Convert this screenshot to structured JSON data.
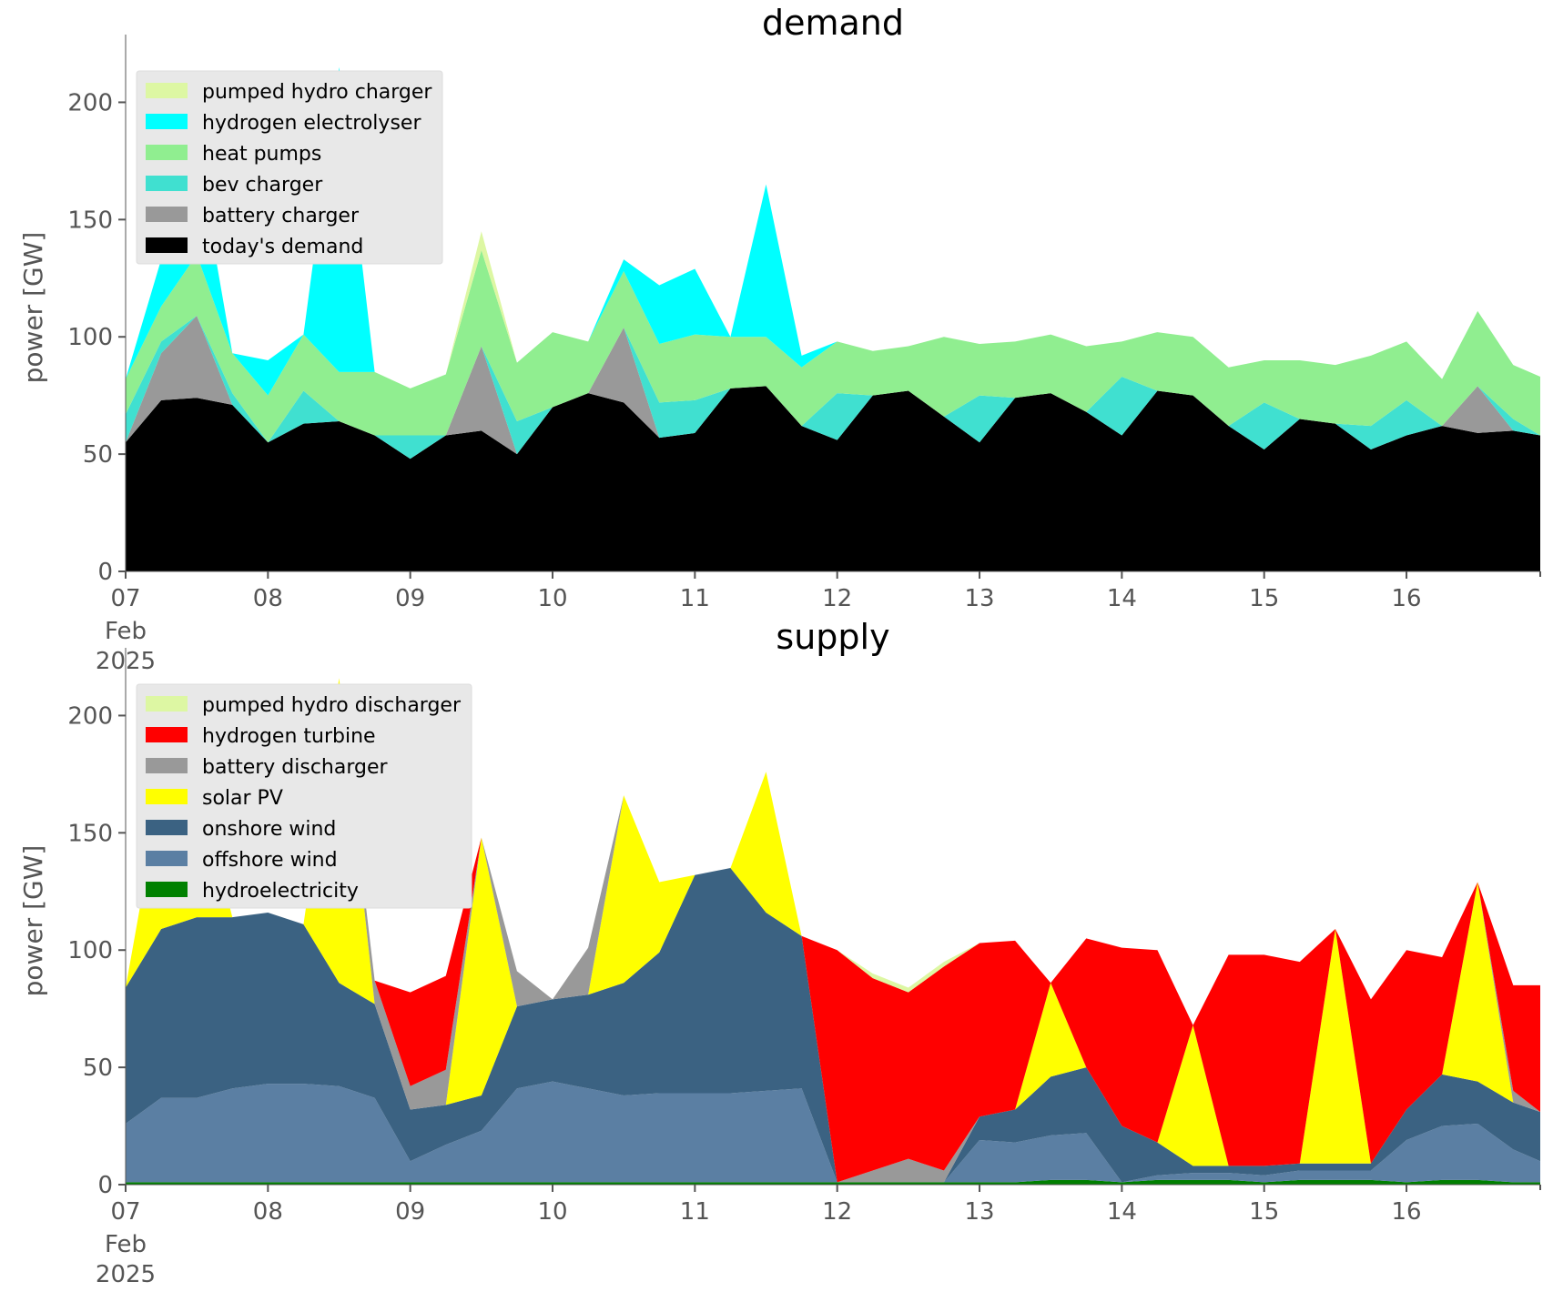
{
  "chart_data": [
    {
      "type": "area",
      "title": "demand",
      "ylabel": "power [GW]",
      "ylim": [
        0,
        225
      ],
      "yticks": [
        "0",
        "50",
        "100",
        "150",
        "200"
      ],
      "xlim": [
        0,
        9.94
      ],
      "xticks": [
        {
          "pos": 0,
          "label": "07",
          "sublabels": [
            "Feb",
            "2025"
          ]
        },
        {
          "pos": 1,
          "label": "08"
        },
        {
          "pos": 2,
          "label": "09"
        },
        {
          "pos": 3,
          "label": "10"
        },
        {
          "pos": 4,
          "label": "11"
        },
        {
          "pos": 5,
          "label": "12"
        },
        {
          "pos": 6,
          "label": "13"
        },
        {
          "pos": 7,
          "label": "14"
        },
        {
          "pos": 8,
          "label": "15"
        },
        {
          "pos": 9,
          "label": "16"
        }
      ],
      "x_unit": "days from 07 Feb 2025",
      "x": [
        0,
        0.25,
        0.5,
        0.75,
        1,
        1.25,
        1.5,
        1.75,
        2,
        2.25,
        2.5,
        2.75,
        3,
        3.25,
        3.5,
        3.75,
        4,
        4.25,
        4.5,
        4.75,
        5,
        5.25,
        5.5,
        5.75,
        6,
        6.25,
        6.5,
        6.75,
        7,
        7.25,
        7.5,
        7.75,
        8,
        8.25,
        8.5,
        8.75,
        9,
        9.25,
        9.5,
        9.75,
        9.94
      ],
      "legend_position": "top-left",
      "grid": false,
      "series": [
        {
          "name": "today's demand",
          "color": "#000000",
          "values": [
            55,
            73,
            74,
            71,
            55,
            63,
            64,
            58,
            48,
            58,
            60,
            50,
            70,
            76,
            72,
            57,
            59,
            78,
            79,
            62,
            56,
            75,
            77,
            66,
            55,
            74,
            76,
            68,
            58,
            77,
            75,
            62,
            52,
            65,
            63,
            52,
            58,
            62,
            59,
            60,
            58
          ]
        },
        {
          "name": "battery charger",
          "color": "#999999",
          "values": [
            0,
            20,
            35,
            0,
            0,
            0,
            0,
            0,
            0,
            0,
            36,
            0,
            0,
            0,
            32,
            0,
            0,
            0,
            0,
            0,
            0,
            0,
            0,
            0,
            0,
            0,
            0,
            0,
            0,
            0,
            0,
            0,
            0,
            0,
            0,
            0,
            0,
            0,
            20,
            0,
            0
          ]
        },
        {
          "name": "bev charger",
          "color": "#40E0D0",
          "values": [
            12,
            5,
            0,
            5,
            0,
            14,
            0,
            0,
            10,
            0,
            0,
            14,
            0,
            0,
            0,
            15,
            14,
            0,
            0,
            0,
            20,
            0,
            0,
            0,
            20,
            0,
            0,
            0,
            25,
            0,
            0,
            0,
            20,
            0,
            0,
            10,
            15,
            0,
            0,
            5,
            0
          ]
        },
        {
          "name": "heat pumps",
          "color": "#90EE90",
          "values": [
            15,
            15,
            26,
            17,
            20,
            24,
            21,
            27,
            20,
            26,
            41,
            25,
            32,
            22,
            24,
            25,
            28,
            22,
            21,
            25,
            22,
            19,
            19,
            34,
            22,
            24,
            25,
            28,
            15,
            25,
            25,
            25,
            18,
            25,
            25,
            30,
            25,
            20,
            32,
            23,
            25
          ]
        },
        {
          "name": "hydrogen electrolyser",
          "color": "#00FFFF",
          "values": [
            0,
            20,
            45,
            0,
            15,
            0,
            130,
            0,
            0,
            0,
            0,
            0,
            0,
            0,
            5,
            25,
            28,
            0,
            65,
            5,
            0,
            0,
            0,
            0,
            0,
            0,
            0,
            0,
            0,
            0,
            0,
            0,
            0,
            0,
            0,
            0,
            0,
            0,
            0,
            0,
            0
          ]
        },
        {
          "name": "pumped hydro charger",
          "color": "#DDF7A3",
          "values": [
            0,
            0,
            0,
            0,
            0,
            0,
            0,
            0,
            0,
            0,
            8,
            0,
            0,
            0,
            0,
            0,
            0,
            0,
            0,
            0,
            0,
            0,
            0,
            0,
            0,
            0,
            0,
            0,
            0,
            0,
            0,
            0,
            0,
            0,
            0,
            0,
            0,
            0,
            0,
            0,
            0
          ]
        }
      ]
    },
    {
      "type": "area",
      "title": "supply",
      "ylabel": "power [GW]",
      "ylim": [
        0,
        225
      ],
      "yticks": [
        "0",
        "50",
        "100",
        "150",
        "200"
      ],
      "xlim": [
        0,
        9.94
      ],
      "xticks": [
        {
          "pos": 0,
          "label": "07",
          "sublabels": [
            "Feb",
            "2025"
          ]
        },
        {
          "pos": 1,
          "label": "08"
        },
        {
          "pos": 2,
          "label": "09"
        },
        {
          "pos": 3,
          "label": "10"
        },
        {
          "pos": 4,
          "label": "11"
        },
        {
          "pos": 5,
          "label": "12"
        },
        {
          "pos": 6,
          "label": "13"
        },
        {
          "pos": 7,
          "label": "14"
        },
        {
          "pos": 8,
          "label": "15"
        },
        {
          "pos": 9,
          "label": "16"
        }
      ],
      "x_unit": "days from 07 Feb 2025",
      "x": [
        0,
        0.25,
        0.5,
        0.75,
        1,
        1.25,
        1.5,
        1.75,
        2,
        2.25,
        2.5,
        2.75,
        3,
        3.25,
        3.5,
        3.75,
        4,
        4.25,
        4.5,
        4.75,
        5,
        5.25,
        5.5,
        5.75,
        6,
        6.25,
        6.5,
        6.75,
        7,
        7.25,
        7.5,
        7.75,
        8,
        8.25,
        8.5,
        8.75,
        9,
        9.25,
        9.5,
        9.75,
        9.94
      ],
      "legend_position": "top-left",
      "grid": false,
      "series": [
        {
          "name": "hydroelectricity",
          "color": "#008000",
          "values": [
            1,
            1,
            1,
            1,
            1,
            1,
            1,
            1,
            1,
            1,
            1,
            1,
            1,
            1,
            1,
            1,
            1,
            1,
            1,
            1,
            1,
            1,
            1,
            1,
            1,
            1,
            2,
            2,
            1,
            2,
            2,
            2,
            1,
            2,
            2,
            2,
            1,
            2,
            2,
            1,
            1
          ]
        },
        {
          "name": "offshore wind",
          "color": "#5B7FA3",
          "values": [
            25,
            36,
            36,
            40,
            42,
            42,
            41,
            36,
            9,
            16,
            22,
            40,
            43,
            40,
            37,
            38,
            38,
            38,
            39,
            40,
            0,
            0,
            0,
            0,
            18,
            17,
            19,
            20,
            0,
            2,
            3,
            3,
            3,
            4,
            4,
            4,
            18,
            23,
            24,
            14,
            9
          ]
        },
        {
          "name": "onshore wind",
          "color": "#3B6282",
          "values": [
            58,
            72,
            77,
            73,
            73,
            68,
            44,
            40,
            22,
            17,
            15,
            35,
            35,
            40,
            48,
            60,
            93,
            96,
            76,
            65,
            0,
            0,
            0,
            0,
            10,
            14,
            25,
            28,
            24,
            14,
            3,
            3,
            4,
            3,
            3,
            3,
            13,
            22,
            18,
            20,
            21
          ]
        },
        {
          "name": "solar PV",
          "color": "#FFFF00",
          "values": [
            0,
            60,
            60,
            0,
            0,
            0,
            130,
            0,
            0,
            0,
            110,
            0,
            0,
            0,
            80,
            30,
            0,
            0,
            60,
            0,
            0,
            0,
            0,
            0,
            0,
            0,
            40,
            0,
            0,
            0,
            60,
            0,
            0,
            0,
            100,
            0,
            0,
            0,
            85,
            0,
            0
          ]
        },
        {
          "name": "battery discharger",
          "color": "#999999",
          "values": [
            0,
            0,
            0,
            0,
            0,
            0,
            0,
            10,
            10,
            15,
            0,
            15,
            0,
            20,
            0,
            0,
            0,
            0,
            0,
            0,
            0,
            5,
            10,
            5,
            0,
            0,
            0,
            0,
            0,
            0,
            0,
            0,
            0,
            0,
            0,
            0,
            0,
            0,
            0,
            5,
            0
          ]
        },
        {
          "name": "hydrogen turbine",
          "color": "#FF0000",
          "values": [
            0,
            0,
            0,
            0,
            0,
            0,
            0,
            0,
            40,
            40,
            0,
            0,
            0,
            0,
            0,
            0,
            0,
            0,
            0,
            0,
            99,
            82,
            71,
            87,
            74,
            72,
            0,
            55,
            76,
            82,
            0,
            90,
            90,
            86,
            0,
            70,
            68,
            50,
            0,
            45,
            54
          ]
        },
        {
          "name": "pumped hydro discharger",
          "color": "#DDF7A3",
          "values": [
            0,
            0,
            0,
            0,
            0,
            0,
            0,
            0,
            0,
            0,
            0,
            0,
            0,
            0,
            0,
            0,
            0,
            0,
            0,
            0,
            0,
            2,
            2,
            2,
            0,
            0,
            0,
            0,
            0,
            0,
            0,
            0,
            0,
            0,
            0,
            0,
            0,
            0,
            0,
            0,
            0
          ]
        }
      ]
    }
  ]
}
